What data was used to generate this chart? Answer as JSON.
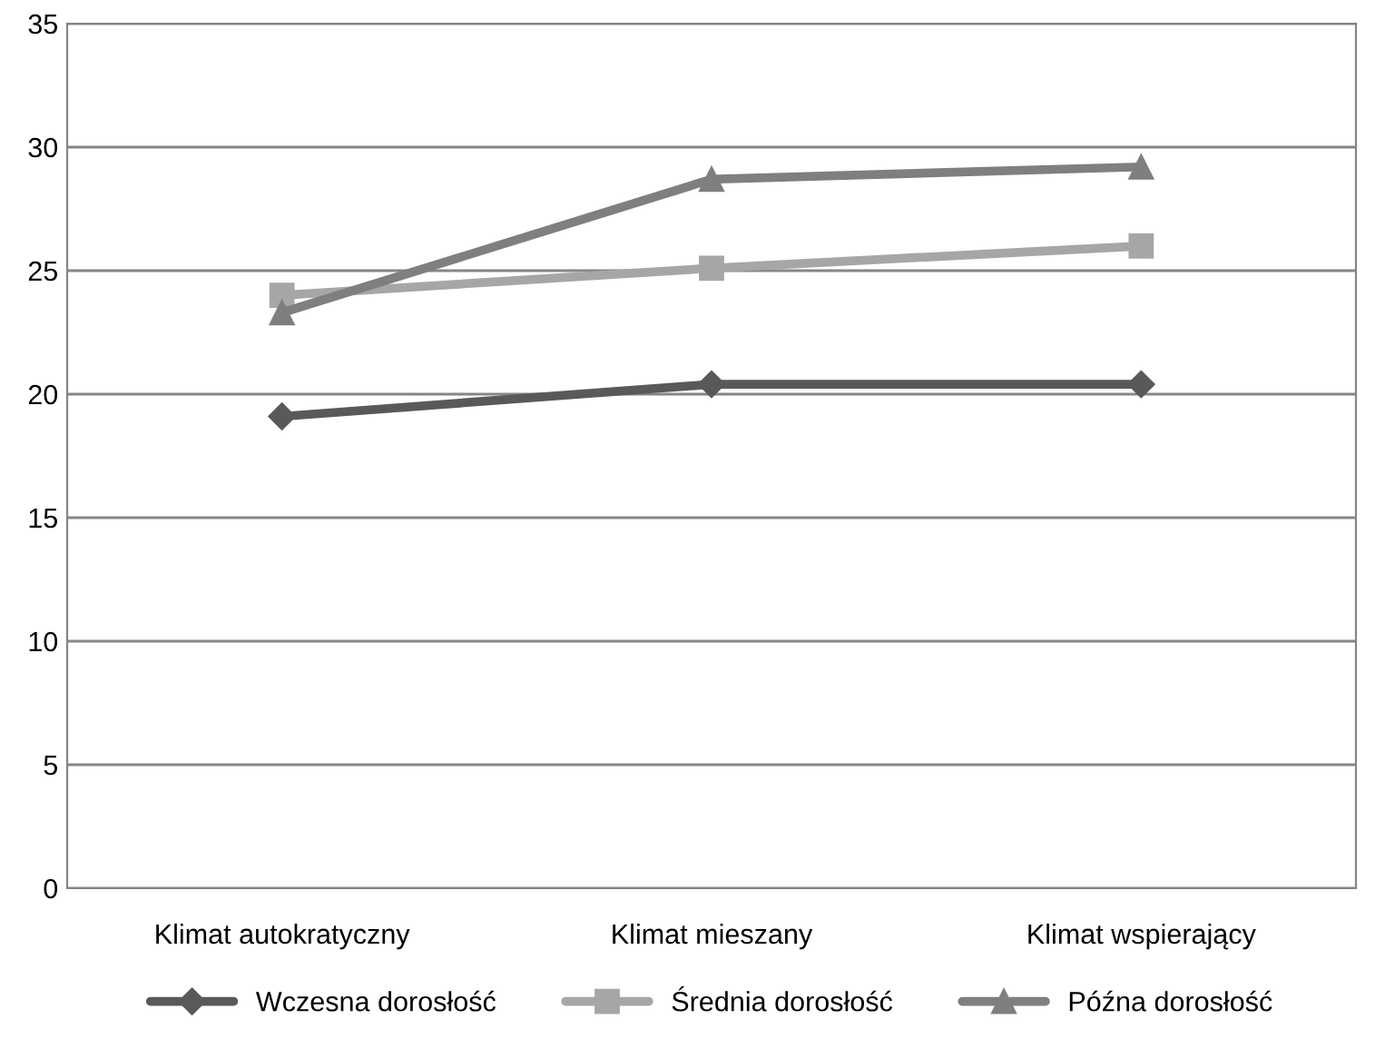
{
  "chart_data": {
    "type": "line",
    "categories": [
      "Klimat autokratyczny",
      "Klimat mieszany",
      "Klimat wspierający"
    ],
    "series": [
      {
        "name": "Wczesna dorosłość",
        "color": "#595959",
        "marker": "diamond",
        "values": [
          19.1,
          20.4,
          20.4
        ]
      },
      {
        "name": "Średnia dorosłość",
        "color": "#a6a6a6",
        "marker": "square",
        "values": [
          24.0,
          25.1,
          26.0
        ]
      },
      {
        "name": "Późna dorosłość",
        "color": "#7f7f7f",
        "marker": "triangle",
        "values": [
          23.3,
          28.7,
          29.2
        ]
      }
    ],
    "ylim": [
      0,
      35
    ],
    "yticks": [
      0,
      5,
      10,
      15,
      20,
      25,
      30,
      35
    ],
    "grid": "y",
    "legend": "bottom",
    "line_style": "solid"
  }
}
